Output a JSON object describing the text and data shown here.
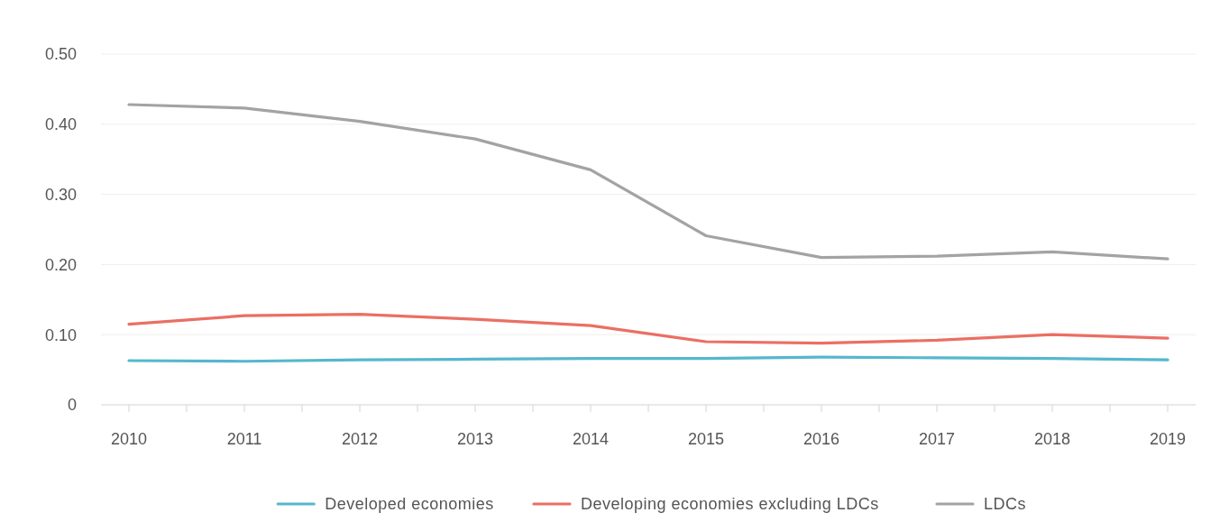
{
  "chart_data": {
    "type": "line",
    "categories": [
      "2010",
      "2011",
      "2012",
      "2013",
      "2014",
      "2015",
      "2016",
      "2017",
      "2018",
      "2019"
    ],
    "series": [
      {
        "name": "Developed economies",
        "color": "#56b7cc",
        "values": [
          0.063,
          0.062,
          0.064,
          0.065,
          0.066,
          0.066,
          0.068,
          0.067,
          0.066,
          0.064
        ]
      },
      {
        "name": "Developing economies excluding LDCs",
        "color": "#eb6f63",
        "values": [
          0.115,
          0.127,
          0.129,
          0.122,
          0.113,
          0.09,
          0.088,
          0.092,
          0.1,
          0.095
        ]
      },
      {
        "name": "LDCs",
        "color": "#a3a3a3",
        "values": [
          0.428,
          0.423,
          0.404,
          0.379,
          0.335,
          0.241,
          0.21,
          0.212,
          0.218,
          0.208
        ]
      }
    ],
    "ylim": [
      0,
      0.5
    ],
    "yticks": [
      {
        "value": 0,
        "label": "0"
      },
      {
        "value": 0.1,
        "label": "0.10"
      },
      {
        "value": 0.2,
        "label": "0.20"
      },
      {
        "value": 0.3,
        "label": "0.30"
      },
      {
        "value": 0.4,
        "label": "0.40"
      },
      {
        "value": 0.5,
        "label": "0.50"
      }
    ],
    "grid": "y",
    "legend": "bottom",
    "marker": "none",
    "line_style": "solid"
  }
}
